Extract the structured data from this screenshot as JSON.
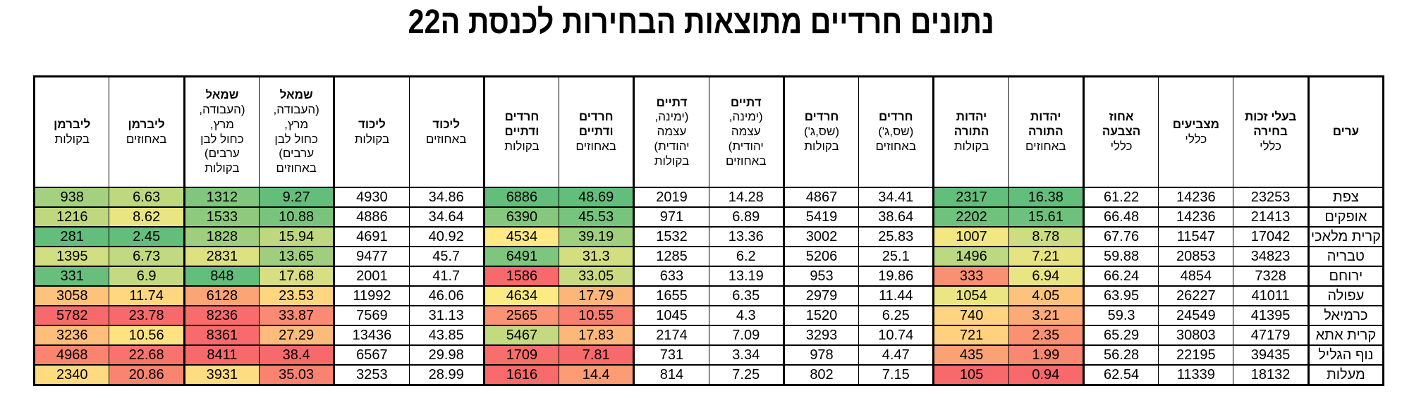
{
  "title": "נתונים חרדיים מתוצאות הבחירות לכנסת ה22",
  "color_scale": {
    "low": "#F8696B",
    "mid": "#FFEB84",
    "high": "#63BE7B"
  },
  "chart_data": {
    "type": "table",
    "title": "נתונים חרדיים מתוצאות הבחירות לכנסת ה22",
    "direction": "rtl",
    "columns": [
      {
        "id": "city",
        "title": "ערים",
        "sub": ""
      },
      {
        "id": "eligible_total",
        "title": "בעלי זכות\nבחירה",
        "sub": "כללי"
      },
      {
        "id": "voters_total",
        "title": "מצביעים",
        "sub": "כללי"
      },
      {
        "id": "turnout_total",
        "title": "אחוז\nהצבעה",
        "sub": "כללי"
      },
      {
        "id": "utj_pct",
        "title": "יהדות\nהתורה",
        "sub": "באחוזים"
      },
      {
        "id": "utj_votes",
        "title": "יהדות\nהתורה",
        "sub": "בקולות"
      },
      {
        "id": "haredim_pct",
        "title": "חרדים",
        "sub": "(שס,ג')\nבאחוזים"
      },
      {
        "id": "haredim_votes",
        "title": "חרדים",
        "sub": "(שס,ג')\nבקולות"
      },
      {
        "id": "datiim_pct",
        "title": "דתיים",
        "sub": "(ימינה,\nעצמה\nיהודית)\nבאחוזים"
      },
      {
        "id": "datiim_votes",
        "title": "דתיים",
        "sub": "(ימינה,\nעצמה\nיהודית)\nבקולות"
      },
      {
        "id": "har_dat_pct",
        "title": "חרדים\nודתיים",
        "sub": "באחוזים"
      },
      {
        "id": "har_dat_votes",
        "title": "חרדים\nודתיים",
        "sub": "בקולות"
      },
      {
        "id": "likud_pct",
        "title": "ליכוד",
        "sub": "באחוזים"
      },
      {
        "id": "likud_votes",
        "title": "ליכוד",
        "sub": "בקולות"
      },
      {
        "id": "left_pct",
        "title": "שמאל",
        "sub": "(העבודה,\nמרץ,\nכחול לבן\nערבים)\nבאחוזים"
      },
      {
        "id": "left_votes",
        "title": "שמאל",
        "sub": "(העבודה,\nמרץ,\nכחול לבן\nערבים)\nבקולות"
      },
      {
        "id": "liberman_pct",
        "title": "ליברמן",
        "sub": "באחוזים"
      },
      {
        "id": "liberman_votes",
        "title": "ליברמן",
        "sub": "בקולות"
      }
    ],
    "rows": [
      {
        "cells": [
          {
            "v": "צפת"
          },
          {
            "v": "23253"
          },
          {
            "v": "14236"
          },
          {
            "v": "61.22"
          },
          {
            "v": "16.38",
            "bg": "#63BE7B"
          },
          {
            "v": "2317",
            "bg": "#63BE7B"
          },
          {
            "v": "34.41"
          },
          {
            "v": "4867"
          },
          {
            "v": "14.28"
          },
          {
            "v": "2019"
          },
          {
            "v": "48.69",
            "bg": "#63BE7B"
          },
          {
            "v": "6886",
            "bg": "#63BE7B"
          },
          {
            "v": "34.86"
          },
          {
            "v": "4930"
          },
          {
            "v": "9.27",
            "bg": "#63BE7B"
          },
          {
            "v": "1312",
            "bg": "#80C67D"
          },
          {
            "v": "6.63",
            "bg": "#BED880"
          },
          {
            "v": "938",
            "bg": "#A4D17F"
          }
        ]
      },
      {
        "cells": [
          {
            "v": "אופקים"
          },
          {
            "v": "21413"
          },
          {
            "v": "14236"
          },
          {
            "v": "66.48"
          },
          {
            "v": "15.61",
            "bg": "#6EC17C"
          },
          {
            "v": "2202",
            "bg": "#6FC27C"
          },
          {
            "v": "38.64"
          },
          {
            "v": "5419"
          },
          {
            "v": "6.89"
          },
          {
            "v": "971"
          },
          {
            "v": "45.53",
            "bg": "#77C47C"
          },
          {
            "v": "6390",
            "bg": "#85C87D"
          },
          {
            "v": "34.64"
          },
          {
            "v": "4886"
          },
          {
            "v": "10.88",
            "bg": "#79C47C"
          },
          {
            "v": "1533",
            "bg": "#8DCA7D"
          },
          {
            "v": "8.62",
            "bg": "#EAE583"
          },
          {
            "v": "1216",
            "bg": "#BFD880"
          }
        ]
      },
      {
        "cells": [
          {
            "v": "קרית מלאכי"
          },
          {
            "v": "17042"
          },
          {
            "v": "11547"
          },
          {
            "v": "67.76"
          },
          {
            "v": "8.78",
            "bg": "#CFDD81"
          },
          {
            "v": "1007",
            "bg": "#F1E783"
          },
          {
            "v": "25.83"
          },
          {
            "v": "3002"
          },
          {
            "v": "13.36"
          },
          {
            "v": "1532"
          },
          {
            "v": "39.19",
            "bg": "#A0CF7E"
          },
          {
            "v": "4534",
            "bg": "#FFE984"
          },
          {
            "v": "40.92"
          },
          {
            "v": "4691"
          },
          {
            "v": "15.94",
            "bg": "#BFD880"
          },
          {
            "v": "1828",
            "bg": "#9FCF7E"
          },
          {
            "v": "2.45",
            "bg": "#63BE7B"
          },
          {
            "v": "281",
            "bg": "#63BE7B"
          }
        ]
      },
      {
        "cells": [
          {
            "v": "טבריה"
          },
          {
            "v": "34823"
          },
          {
            "v": "20853"
          },
          {
            "v": "59.88"
          },
          {
            "v": "7.21",
            "bg": "#E6E482"
          },
          {
            "v": "1496",
            "bg": "#BCD880"
          },
          {
            "v": "25.1"
          },
          {
            "v": "5206"
          },
          {
            "v": "6.2"
          },
          {
            "v": "1285"
          },
          {
            "v": "31.3",
            "bg": "#D3DE81"
          },
          {
            "v": "6491",
            "bg": "#7EC67D"
          },
          {
            "v": "45.7"
          },
          {
            "v": "9477"
          },
          {
            "v": "13.65",
            "bg": "#9FCF7E"
          },
          {
            "v": "2831",
            "bg": "#DDE182"
          },
          {
            "v": "6.73",
            "bg": "#C1D980"
          },
          {
            "v": "1395",
            "bg": "#D1DE81"
          }
        ]
      },
      {
        "cells": [
          {
            "v": "ירוחם"
          },
          {
            "v": "7328"
          },
          {
            "v": "4854"
          },
          {
            "v": "66.24"
          },
          {
            "v": "6.94",
            "bg": "#EAE583"
          },
          {
            "v": "333",
            "bg": "#FA9072"
          },
          {
            "v": "19.86"
          },
          {
            "v": "953"
          },
          {
            "v": "13.19"
          },
          {
            "v": "633"
          },
          {
            "v": "33.05",
            "bg": "#C8DB80"
          },
          {
            "v": "1586",
            "bg": "#F8696B"
          },
          {
            "v": "41.7"
          },
          {
            "v": "2001"
          },
          {
            "v": "17.68",
            "bg": "#D7DF82"
          },
          {
            "v": "848",
            "bg": "#63BE7B"
          },
          {
            "v": "6.9",
            "bg": "#C4DA81"
          },
          {
            "v": "331",
            "bg": "#68BF7B"
          }
        ]
      },
      {
        "cells": [
          {
            "v": "עפולה"
          },
          {
            "v": "41011"
          },
          {
            "v": "26227"
          },
          {
            "v": "63.95"
          },
          {
            "v": "4.05",
            "bg": "#FDC27C"
          },
          {
            "v": "1054",
            "bg": "#ECE583"
          },
          {
            "v": "11.44"
          },
          {
            "v": "2979"
          },
          {
            "v": "6.35"
          },
          {
            "v": "1655"
          },
          {
            "v": "17.79",
            "bg": "#FCB67A"
          },
          {
            "v": "4634",
            "bg": "#FCEA84"
          },
          {
            "v": "46.06"
          },
          {
            "v": "11992"
          },
          {
            "v": "23.53",
            "bg": "#FED680"
          },
          {
            "v": "6128",
            "bg": "#FBA476"
          },
          {
            "v": "11.74",
            "bg": "#FED780"
          },
          {
            "v": "3058",
            "bg": "#FDC37C"
          }
        ]
      },
      {
        "cells": [
          {
            "v": "כרמיאל"
          },
          {
            "v": "41395"
          },
          {
            "v": "24549"
          },
          {
            "v": "59.3"
          },
          {
            "v": "3.21",
            "bg": "#FCAA77"
          },
          {
            "v": "740",
            "bg": "#FED480"
          },
          {
            "v": "6.25"
          },
          {
            "v": "1520"
          },
          {
            "v": "4.3"
          },
          {
            "v": "1045"
          },
          {
            "v": "10.55",
            "bg": "#F97E6F"
          },
          {
            "v": "2565",
            "bg": "#FA9373"
          },
          {
            "v": "31.13"
          },
          {
            "v": "7569"
          },
          {
            "v": "33.87",
            "bg": "#FA8A71"
          },
          {
            "v": "8236",
            "bg": "#F86D6C"
          },
          {
            "v": "23.78",
            "bg": "#F8696B"
          },
          {
            "v": "5782",
            "bg": "#F8696B"
          }
        ]
      },
      {
        "cells": [
          {
            "v": "קרית אתא"
          },
          {
            "v": "47179"
          },
          {
            "v": "30803"
          },
          {
            "v": "65.29"
          },
          {
            "v": "2.35",
            "bg": "#FA9172"
          },
          {
            "v": "721",
            "bg": "#FED17F"
          },
          {
            "v": "10.74"
          },
          {
            "v": "3293"
          },
          {
            "v": "7.09"
          },
          {
            "v": "2174"
          },
          {
            "v": "17.83",
            "bg": "#FCB77A"
          },
          {
            "v": "5467",
            "bg": "#C3DA81"
          },
          {
            "v": "43.85"
          },
          {
            "v": "13436"
          },
          {
            "v": "27.29",
            "bg": "#FCBA7B"
          },
          {
            "v": "8361",
            "bg": "#F86A6B"
          },
          {
            "v": "10.56",
            "bg": "#FFE282"
          },
          {
            "v": "3236",
            "bg": "#FDBD7B"
          }
        ]
      },
      {
        "cells": [
          {
            "v": "נוף הגליל"
          },
          {
            "v": "39435"
          },
          {
            "v": "22195"
          },
          {
            "v": "56.28"
          },
          {
            "v": "1.99",
            "bg": "#FA8771"
          },
          {
            "v": "435",
            "bg": "#FBA176"
          },
          {
            "v": "4.47"
          },
          {
            "v": "978"
          },
          {
            "v": "3.34"
          },
          {
            "v": "731"
          },
          {
            "v": "7.81",
            "bg": "#F8696B"
          },
          {
            "v": "1709",
            "bg": "#F86E6C"
          },
          {
            "v": "29.98"
          },
          {
            "v": "6567"
          },
          {
            "v": "38.4",
            "bg": "#F8696B"
          },
          {
            "v": "8411",
            "bg": "#F8696B"
          },
          {
            "v": "22.68",
            "bg": "#F9736D"
          },
          {
            "v": "4968",
            "bg": "#FA8470"
          }
        ]
      },
      {
        "cells": [
          {
            "v": "מעלות"
          },
          {
            "v": "18132"
          },
          {
            "v": "11339"
          },
          {
            "v": "62.54"
          },
          {
            "v": "0.94",
            "bg": "#F8696B"
          },
          {
            "v": "105",
            "bg": "#F8696B"
          },
          {
            "v": "7.15"
          },
          {
            "v": "802"
          },
          {
            "v": "7.25"
          },
          {
            "v": "814"
          },
          {
            "v": "14.4",
            "bg": "#FB9C75"
          },
          {
            "v": "1616",
            "bg": "#F86A6B"
          },
          {
            "v": "28.99"
          },
          {
            "v": "3253"
          },
          {
            "v": "35.03",
            "bg": "#F98270"
          },
          {
            "v": "3931",
            "bg": "#FEDC81"
          },
          {
            "v": "20.86",
            "bg": "#F98470"
          },
          {
            "v": "2340",
            "bg": "#FEDB81"
          }
        ]
      }
    ]
  }
}
